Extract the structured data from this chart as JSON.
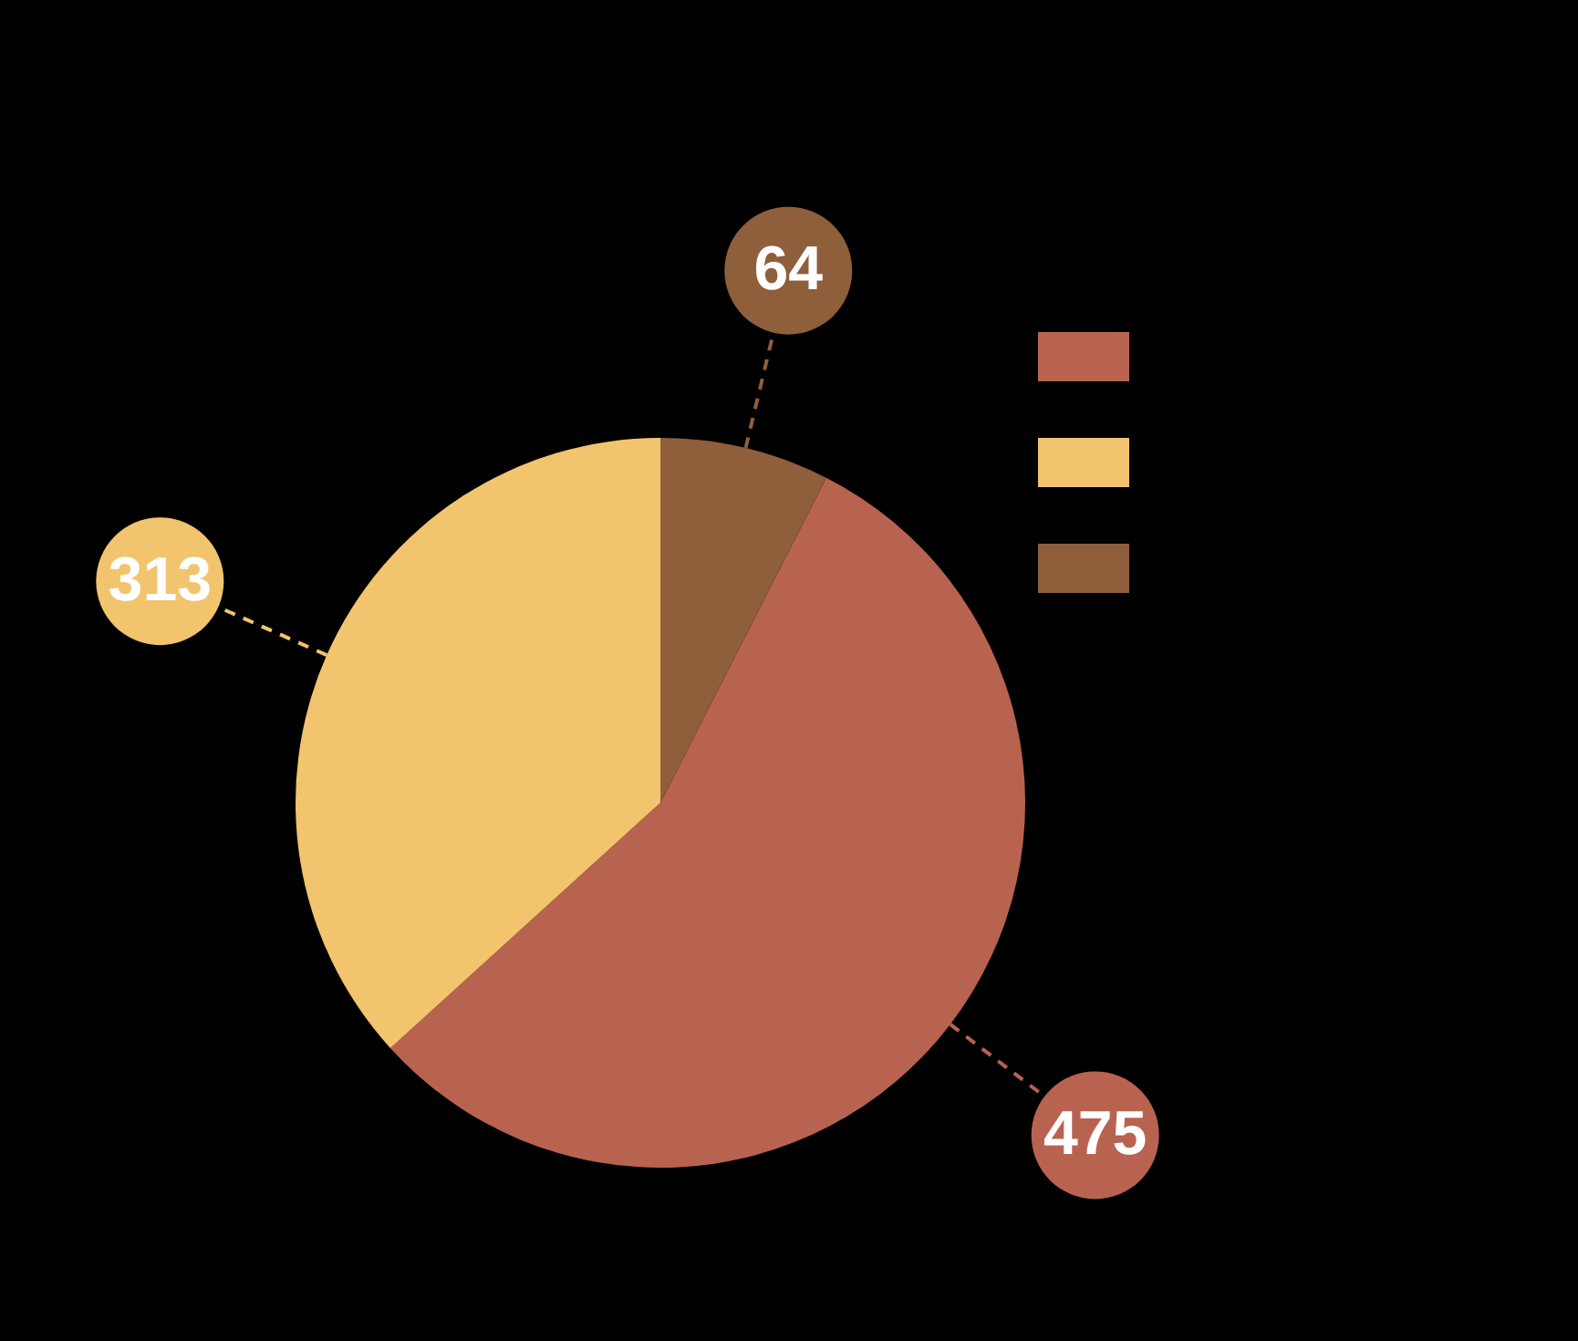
{
  "chart_data": {
    "type": "pie",
    "categories": [
      null,
      null,
      null
    ],
    "values": [
      475,
      313,
      64
    ],
    "colors": [
      "#b86350",
      "#f2c46e",
      "#8f5e3a"
    ],
    "data_labels": true
  }
}
